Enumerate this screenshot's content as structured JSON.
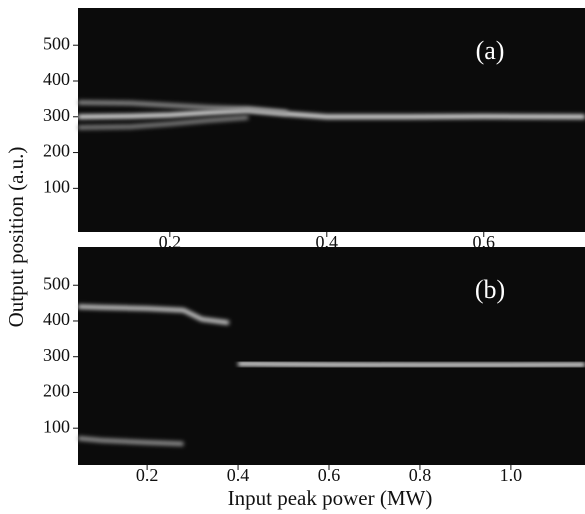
{
  "chart_data": [
    {
      "type": "line",
      "annotation": "(a)",
      "ylabel": "Output position (a.u.)",
      "xlim": [
        0.083,
        0.729
      ],
      "ylim": [
        -22,
        604
      ],
      "xticks": [
        0.2,
        0.4,
        0.6
      ],
      "yticks": [
        100,
        200,
        300,
        400,
        500
      ],
      "x": [
        0.083,
        0.15,
        0.2,
        0.25,
        0.3,
        0.35,
        0.4,
        0.5,
        0.6,
        0.729
      ],
      "series": [
        {
          "color": "#ffffff",
          "values": [
            300,
            302,
            305,
            312,
            318,
            308,
            300,
            300,
            301,
            300
          ]
        },
        {
          "color": "#9a9a9a",
          "values": [
            340,
            338,
            332,
            326,
            322,
            312,
            null,
            null,
            null,
            null
          ]
        },
        {
          "color": "#8a8a8a",
          "values": [
            270,
            272,
            280,
            290,
            298,
            null,
            null,
            null,
            null,
            null
          ]
        }
      ]
    },
    {
      "type": "line",
      "annotation": "(b)",
      "xlabel": "Input peak power (MW)",
      "xlim": [
        0.048,
        1.163
      ],
      "ylim": [
        -3,
        607
      ],
      "xticks": [
        0.2,
        0.4,
        0.6,
        0.8,
        "1.0"
      ],
      "yticks": [
        100,
        200,
        300,
        400,
        500
      ],
      "x": [
        0.048,
        0.1,
        0.2,
        0.28,
        0.32,
        0.38,
        0.4,
        0.5,
        0.6,
        0.8,
        1.0,
        1.163
      ],
      "series": [
        {
          "color": "#e0e0e0",
          "values": [
            440,
            438,
            435,
            430,
            405,
            395,
            null,
            null,
            null,
            null,
            null,
            null
          ]
        },
        {
          "color": "#a0a0a0",
          "values": [
            72,
            66,
            60,
            56,
            null,
            null,
            null,
            null,
            null,
            null,
            null,
            null
          ]
        },
        {
          "color": "#ffffff",
          "values": [
            null,
            null,
            null,
            null,
            null,
            null,
            280,
            279,
            278,
            277,
            277,
            278
          ]
        }
      ]
    }
  ]
}
